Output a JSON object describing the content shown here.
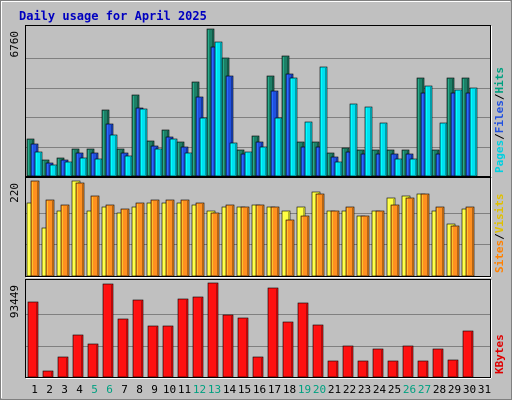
{
  "chart_data": {
    "type": "bar",
    "title": "Daily usage for April 2025",
    "categories": [
      "1",
      "2",
      "3",
      "4",
      "5",
      "6",
      "7",
      "8",
      "9",
      "10",
      "11",
      "12",
      "13",
      "14",
      "15",
      "16",
      "17",
      "18",
      "19",
      "20",
      "21",
      "22",
      "23",
      "24",
      "25",
      "26",
      "27",
      "28",
      "29",
      "30",
      "31"
    ],
    "weekend_days": [
      5,
      6,
      12,
      13,
      19,
      20,
      26,
      27
    ],
    "colors": {
      "background": "#c0c0c0",
      "frame_light": "#ffffff",
      "frame_dark": "#808080",
      "plot_border": "#000000",
      "grid": "#808080",
      "title": "#0000c0",
      "pages": "#1d7f66",
      "files": "#2050e0",
      "hits": "#00e0f0",
      "visits": "#ffff40",
      "sites": "#ff9020",
      "kbytes": "#ff1010",
      "label_normal": "#000000",
      "label_weekend": "#00a080",
      "legend_sep": "#000000"
    },
    "panels": [
      {
        "id": "hits-panel",
        "max_label": "6760",
        "ymax": 6760,
        "legend": [
          {
            "text": "Hits",
            "color": "#00a080"
          },
          {
            "text": "/",
            "color": "#000000"
          },
          {
            "text": "Files",
            "color": "#2050e0"
          },
          {
            "text": "/",
            "color": "#000000"
          },
          {
            "text": "Pages",
            "color": "#00d0e0"
          }
        ],
        "series": [
          {
            "name": "Hits",
            "values": [
              1700,
              730,
              830,
              1240,
              1240,
              3020,
              1240,
              3720,
              1610,
              2110,
              1570,
              4300,
              6760,
              5410,
              1200,
              1860,
              4600,
              5540,
              1550,
              1550,
              1040,
              1280,
              1200,
              1200,
              1200,
              1200,
              4500,
              1200,
              4500,
              4500,
              0
            ]
          },
          {
            "name": "Files",
            "values": [
              1450,
              600,
              720,
              1060,
              1060,
              2400,
              1060,
              3150,
              1360,
              1790,
              1330,
              3650,
              5950,
              4610,
              1020,
              1580,
              3900,
              4710,
              1320,
              1320,
              880,
              1090,
              1020,
              1020,
              1020,
              1020,
              3820,
              1020,
              3820,
              3820,
              0
            ]
          },
          {
            "name": "Pages",
            "values": [
              1100,
              520,
              650,
              850,
              780,
              1870,
              900,
              3100,
              1250,
              1720,
              1080,
              2660,
              6150,
              1500,
              1090,
              1350,
              2660,
              4500,
              2500,
              5000,
              660,
              3300,
              3180,
              2460,
              800,
              800,
              4150,
              2430,
              3940,
              4040,
              0
            ]
          }
        ]
      },
      {
        "id": "visits-panel",
        "max_label": "220",
        "ymax": 220,
        "legend": [
          {
            "text": "Visits",
            "color": "#e0c000"
          },
          {
            "text": "/",
            "color": "#000000"
          },
          {
            "text": "Sites",
            "color": "#ff8000"
          }
        ],
        "series": [
          {
            "name": "Visits",
            "values": [
              170,
              110,
              150,
              220,
              150,
              160,
              145,
              160,
              170,
              170,
              170,
              165,
              150,
              160,
              160,
              165,
              160,
              150,
              160,
              195,
              150,
              150,
              140,
              150,
              180,
              185,
              190,
              150,
              120,
              155,
              0
            ]
          },
          {
            "name": "Sites",
            "values": [
              220,
              175,
              165,
              215,
              185,
              165,
              155,
              170,
              175,
              175,
              175,
              170,
              145,
              165,
              160,
              165,
              160,
              130,
              140,
              190,
              150,
              160,
              140,
              150,
              165,
              180,
              190,
              160,
              115,
              160,
              0
            ]
          }
        ]
      },
      {
        "id": "kbytes-panel",
        "max_label": "93449",
        "ymax": 93449,
        "legend": [
          {
            "text": "KBytes",
            "color": "#e00000"
          }
        ],
        "series": [
          {
            "name": "KBytes",
            "values": [
              75000,
              6000,
              20000,
              42000,
              33000,
              92000,
              58000,
              77000,
              51000,
              51000,
              78000,
              80000,
              93449,
              62000,
              59000,
              20000,
              88000,
              55000,
              74000,
              52000,
              16000,
              31000,
              16000,
              28000,
              16000,
              31000,
              16000,
              28000,
              17000,
              46000,
              0
            ]
          }
        ]
      }
    ]
  }
}
